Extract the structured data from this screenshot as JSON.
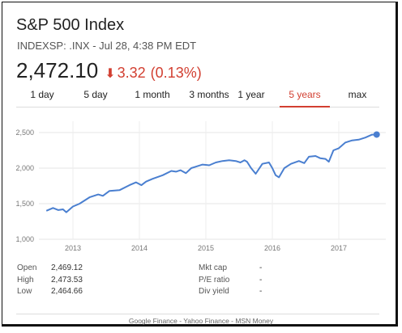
{
  "header": {
    "title": "S&P 500 Index",
    "subtitle": "INDEXSP: .INX - Jul 28, 4:38 PM EDT"
  },
  "quote": {
    "price": "2,472.10",
    "change_arrow": "down-arrow-icon",
    "change_glyph": "⬇",
    "change": "3.32",
    "change_percent": "(0.13%)",
    "change_color": "#d23f31"
  },
  "tabs": [
    {
      "label": "1 day",
      "active": false
    },
    {
      "label": "5 day",
      "active": false
    },
    {
      "label": "1 month",
      "active": false
    },
    {
      "label": "3 months",
      "active": false
    },
    {
      "label": "1 year",
      "active": false
    },
    {
      "label": "5 years",
      "active": true
    },
    {
      "label": "max",
      "active": false
    }
  ],
  "chart_data": {
    "type": "line",
    "title": "",
    "xlabel": "",
    "ylabel": "",
    "x_tick_labels": [
      "2013",
      "2014",
      "2015",
      "2016",
      "2017"
    ],
    "y_tick_labels": [
      "1,000",
      "1,500",
      "2,000",
      "2,500"
    ],
    "ylim": [
      1000,
      2600
    ],
    "xlim": [
      2012.6,
      2017.62
    ],
    "grid": true,
    "line_color": "#4a7fd0",
    "series": [
      {
        "x": [
          2012.6,
          2012.7,
          2012.78,
          2012.85,
          2012.9,
          2013.0,
          2013.1,
          2013.25,
          2013.38,
          2013.45,
          2013.55,
          2013.7,
          2013.85,
          2013.95,
          2014.03,
          2014.1,
          2014.2,
          2014.35,
          2014.48,
          2014.55,
          2014.62,
          2014.7,
          2014.78,
          2014.85,
          2014.95,
          2015.05,
          2015.15,
          2015.25,
          2015.35,
          2015.45,
          2015.52,
          2015.58,
          2015.62,
          2015.68,
          2015.75,
          2015.85,
          2015.95,
          2016.0,
          2016.05,
          2016.1,
          2016.18,
          2016.28,
          2016.4,
          2016.48,
          2016.55,
          2016.65,
          2016.72,
          2016.8,
          2016.85,
          2016.92,
          2017.0,
          2017.1,
          2017.2,
          2017.3,
          2017.4,
          2017.5,
          2017.57
        ],
        "y": [
          1400,
          1440,
          1410,
          1420,
          1380,
          1460,
          1500,
          1590,
          1630,
          1610,
          1680,
          1690,
          1760,
          1800,
          1760,
          1810,
          1850,
          1900,
          1960,
          1950,
          1970,
          1930,
          2000,
          2020,
          2050,
          2040,
          2080,
          2100,
          2110,
          2100,
          2080,
          2110,
          2090,
          2000,
          1920,
          2060,
          2080,
          2000,
          1900,
          1870,
          2000,
          2060,
          2100,
          2070,
          2160,
          2170,
          2140,
          2130,
          2090,
          2250,
          2280,
          2360,
          2390,
          2400,
          2430,
          2470,
          2472
        ]
      }
    ],
    "last_point": {
      "x": 2017.57,
      "y": 2472.1
    }
  },
  "stats": {
    "left": [
      {
        "label": "Open",
        "value": "2,469.12"
      },
      {
        "label": "High",
        "value": "2,473.53"
      },
      {
        "label": "Low",
        "value": "2,464.66"
      }
    ],
    "right": [
      {
        "label": "Mkt cap",
        "value": "-"
      },
      {
        "label": "P/E ratio",
        "value": "-"
      },
      {
        "label": "Div yield",
        "value": "-"
      }
    ]
  },
  "footer": {
    "sources": "Google Finance - Yahoo Finance - MSN Money"
  }
}
